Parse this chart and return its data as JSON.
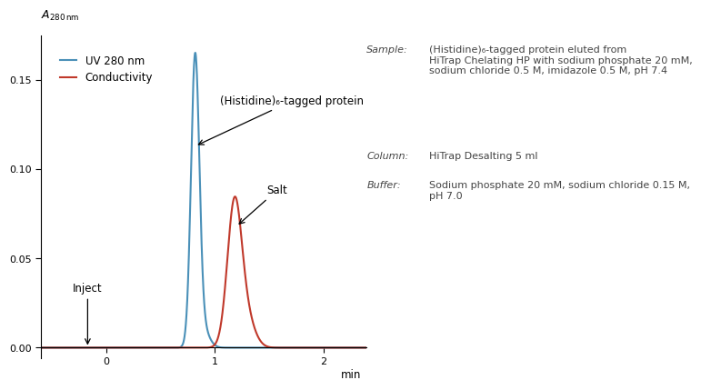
{
  "xlabel": "min",
  "xlim": [
    -0.6,
    2.4
  ],
  "ylim": [
    -0.006,
    0.175
  ],
  "yticks": [
    0.0,
    0.05,
    0.1,
    0.15
  ],
  "xticks": [
    0,
    1,
    2
  ],
  "uv_color": "#4a90b8",
  "cond_color": "#c0392b",
  "legend_uv": "UV 280 nm",
  "legend_cond": "Conductivity",
  "annotation_inject": "Inject",
  "annotation_protein": "(Histidine)₆-tagged protein",
  "annotation_salt": "Salt",
  "info_sample_label": "Sample:",
  "info_sample_value": "(Histidine)₆-tagged protein eluted from\nHiTrap Chelating HP with sodium phosphate 20 mM,\nsodium chloride 0.5 M, imidazole 0.5 M, pH 7.4",
  "info_column_label": "Column:",
  "info_column_value": "HiTrap Desalting 5 ml",
  "info_buffer_label": "Buffer:",
  "info_buffer_value": "Sodium phosphate 20 mM, sodium chloride 0.15 M,\npH 7.0",
  "background_color": "#ffffff",
  "text_color": "#444444",
  "fs_label": 8,
  "fs_val": 8,
  "fs_annot": 8.5,
  "fs_legend": 8.5
}
